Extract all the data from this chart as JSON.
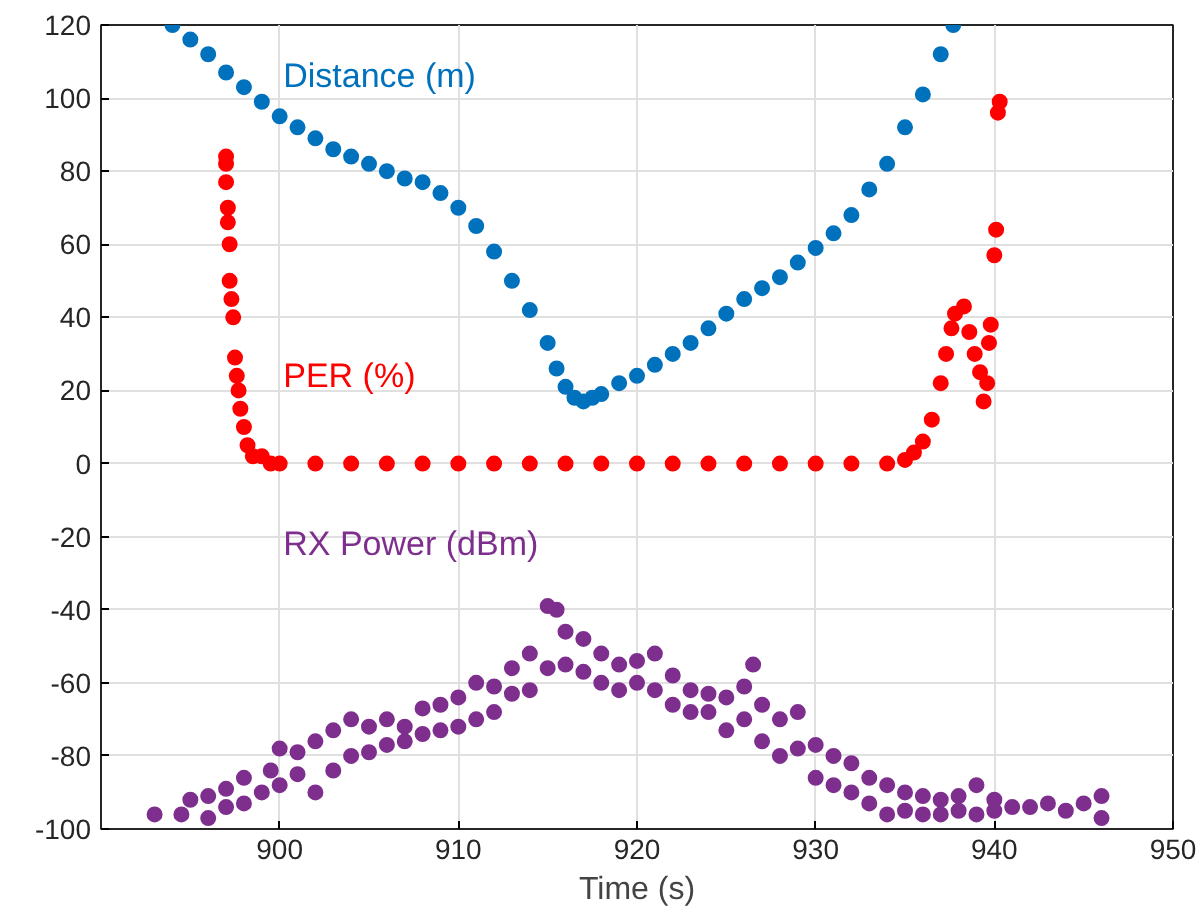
{
  "chart_data": {
    "type": "scatter",
    "xlabel": "Time (s)",
    "xlim": [
      890,
      950
    ],
    "ylim": [
      -100,
      120
    ],
    "xticks": [
      900,
      910,
      920,
      930,
      940,
      950
    ],
    "yticks": [
      -100,
      -80,
      -60,
      -40,
      -20,
      0,
      20,
      40,
      60,
      80,
      100,
      120
    ],
    "grid": true,
    "marker": "circle",
    "series": [
      {
        "name": "Distance (m)",
        "color": "#0072bd",
        "x": [
          894,
          895,
          896,
          897,
          898,
          899,
          900,
          901,
          902,
          903,
          904,
          905,
          906,
          907,
          908,
          909,
          910,
          911,
          912,
          913,
          914,
          915,
          915.5,
          916,
          916.5,
          917,
          917.5,
          918,
          919,
          920,
          921,
          922,
          923,
          924,
          925,
          926,
          927,
          928,
          929,
          930,
          931,
          932,
          933,
          934,
          935,
          936,
          937,
          937.7
        ],
        "values": [
          120,
          116,
          112,
          107,
          103,
          99,
          95,
          92,
          89,
          86,
          84,
          82,
          80,
          78,
          77,
          74,
          70,
          65,
          58,
          50,
          42,
          33,
          26,
          21,
          18,
          17,
          18,
          19,
          22,
          24,
          27,
          30,
          33,
          37,
          41,
          45,
          48,
          51,
          55,
          59,
          63,
          68,
          75,
          82,
          92,
          101,
          112,
          120
        ]
      },
      {
        "name": "PER (%)",
        "color": "#ff0000",
        "x": [
          897,
          897,
          897,
          897.1,
          897.1,
          897.2,
          897.2,
          897.3,
          897.4,
          897.5,
          897.6,
          897.7,
          897.8,
          898,
          898.2,
          898.5,
          899,
          899.5,
          900,
          902,
          904,
          906,
          908,
          910,
          912,
          914,
          916,
          918,
          920,
          922,
          924,
          926,
          928,
          930,
          932,
          934,
          935,
          935.5,
          936,
          936.5,
          937,
          937.3,
          937.6,
          937.8,
          938.3,
          938.6,
          938.9,
          939.2,
          939.4,
          939.6,
          939.7,
          939.8,
          940,
          940.1,
          940.2,
          940.3
        ],
        "values": [
          84,
          82,
          77,
          70,
          66,
          60,
          50,
          45,
          40,
          29,
          24,
          20,
          15,
          10,
          5,
          2,
          2,
          0,
          0,
          0,
          0,
          0,
          0,
          0,
          0,
          0,
          0,
          0,
          0,
          0,
          0,
          0,
          0,
          0,
          0,
          0,
          1,
          3,
          6,
          12,
          22,
          30,
          37,
          41,
          43,
          36,
          30,
          25,
          17,
          22,
          33,
          38,
          57,
          64,
          96,
          99
        ]
      },
      {
        "name": "RX Power (dBm)",
        "color": "#7e2f8e",
        "x": [
          893,
          894.5,
          895,
          896,
          896,
          897,
          897,
          898,
          898,
          899,
          899.5,
          900,
          900,
          901,
          901,
          902,
          902,
          903,
          903,
          904,
          904,
          905,
          905,
          906,
          906,
          907,
          907,
          908,
          908,
          909,
          909,
          910,
          910,
          911,
          911,
          912,
          912,
          913,
          913,
          914,
          914,
          915,
          915,
          915.5,
          916,
          916,
          917,
          917,
          918,
          918,
          919,
          919,
          920,
          920,
          921,
          921,
          922,
          922,
          923,
          923,
          924,
          924,
          925,
          925,
          926,
          926,
          926.5,
          927,
          927,
          928,
          928,
          929,
          929,
          930,
          930,
          931,
          931,
          932,
          932,
          933,
          933,
          934,
          934,
          935,
          935,
          936,
          936,
          937,
          937,
          938,
          938,
          939,
          939,
          940,
          940,
          941,
          942,
          943,
          944,
          945,
          946,
          946
        ],
        "values": [
          -96,
          -96,
          -92,
          -97,
          -91,
          -94,
          -89,
          -93,
          -86,
          -90,
          -84,
          -88,
          -78,
          -85,
          -79,
          -90,
          -76,
          -84,
          -73,
          -80,
          -70,
          -79,
          -72,
          -77,
          -70,
          -76,
          -72,
          -74,
          -67,
          -73,
          -66,
          -72,
          -64,
          -70,
          -60,
          -68,
          -61,
          -63,
          -56,
          -62,
          -52,
          -56,
          -39,
          -40,
          -55,
          -46,
          -57,
          -48,
          -60,
          -52,
          -62,
          -55,
          -60,
          -54,
          -62,
          -52,
          -66,
          -58,
          -68,
          -62,
          -68,
          -63,
          -73,
          -64,
          -70,
          -61,
          -55,
          -76,
          -66,
          -80,
          -70,
          -78,
          -68,
          -86,
          -77,
          -88,
          -80,
          -90,
          -82,
          -93,
          -86,
          -96,
          -88,
          -95,
          -90,
          -96,
          -91,
          -96,
          -92,
          -95,
          -91,
          -96,
          -88,
          -95,
          -92,
          -94,
          -94,
          -93,
          -95,
          -93,
          -97,
          -91
        ]
      }
    ]
  }
}
